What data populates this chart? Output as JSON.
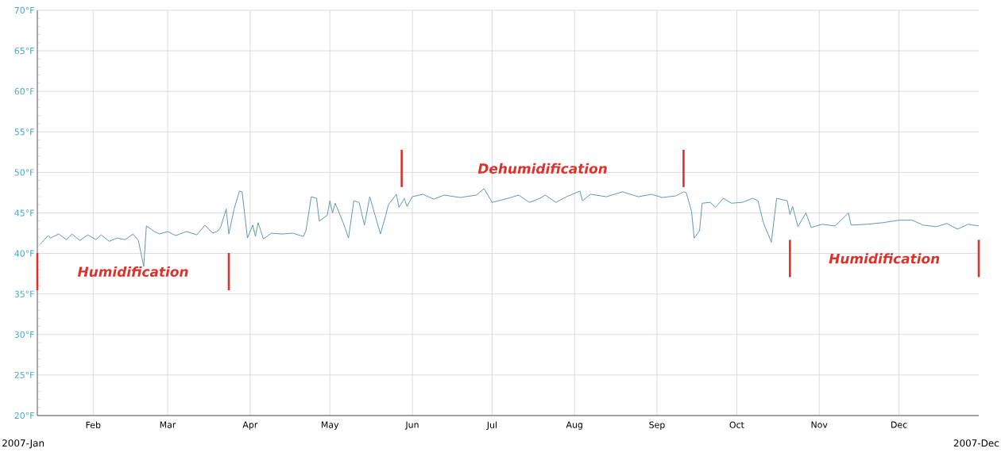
{
  "chart_data": {
    "type": "line",
    "x": [
      "2007-01-12",
      "2007-01-15",
      "2007-01-16",
      "2007-01-19",
      "2007-01-22",
      "2007-01-24",
      "2007-01-27",
      "2007-01-30",
      "2007-02-02",
      "2007-02-04",
      "2007-02-07",
      "2007-02-10",
      "2007-02-13",
      "2007-02-16",
      "2007-02-18",
      "2007-02-20",
      "2007-02-21",
      "2007-02-24",
      "2007-02-26",
      "2007-03-01",
      "2007-03-04",
      "2007-03-08",
      "2007-03-12",
      "2007-03-15",
      "2007-03-18",
      "2007-03-20",
      "2007-03-21",
      "2007-03-23",
      "2007-03-24",
      "2007-03-26",
      "2007-03-28",
      "2007-03-29",
      "2007-03-31",
      "2007-04-02",
      "2007-04-03",
      "2007-04-04",
      "2007-04-06",
      "2007-04-09",
      "2007-04-13",
      "2007-04-17",
      "2007-04-21",
      "2007-04-22",
      "2007-04-24",
      "2007-04-26",
      "2007-04-27",
      "2007-04-30",
      "2007-05-01",
      "2007-05-02",
      "2007-05-03",
      "2007-05-06",
      "2007-05-08",
      "2007-05-10",
      "2007-05-12",
      "2007-05-14",
      "2007-05-16",
      "2007-05-20",
      "2007-05-22",
      "2007-05-23",
      "2007-05-26",
      "2007-05-27",
      "2007-05-29",
      "2007-05-30",
      "2007-06-01",
      "2007-06-05",
      "2007-06-09",
      "2007-06-13",
      "2007-06-19",
      "2007-06-25",
      "2007-06-28",
      "2007-07-01",
      "2007-07-07",
      "2007-07-11",
      "2007-07-15",
      "2007-07-19",
      "2007-07-21",
      "2007-07-25",
      "2007-07-29",
      "2007-08-03",
      "2007-08-04",
      "2007-08-07",
      "2007-08-13",
      "2007-08-19",
      "2007-08-25",
      "2007-08-30",
      "2007-09-03",
      "2007-09-08",
      "2007-09-11",
      "2007-09-12",
      "2007-09-14",
      "2007-09-15",
      "2007-09-17",
      "2007-09-18",
      "2007-09-21",
      "2007-09-23",
      "2007-09-26",
      "2007-09-29",
      "2007-10-03",
      "2007-10-07",
      "2007-10-09",
      "2007-10-11",
      "2007-10-14",
      "2007-10-16",
      "2007-10-20",
      "2007-10-21",
      "2007-10-22",
      "2007-10-24",
      "2007-10-27",
      "2007-10-29",
      "2007-11-02",
      "2007-11-07",
      "2007-11-12",
      "2007-11-13",
      "2007-11-19",
      "2007-11-25",
      "2007-12-01",
      "2007-12-06",
      "2007-12-10",
      "2007-12-15",
      "2007-12-19",
      "2007-12-23",
      "2007-12-27",
      "2007-12-31"
    ],
    "series": [
      {
        "color": "#5f9ba6",
        "values": [
          41.1,
          42.2,
          41.9,
          42.4,
          41.7,
          42.4,
          41.6,
          42.3,
          41.7,
          42.3,
          41.5,
          41.9,
          41.7,
          42.4,
          41.6,
          38.4,
          43.4,
          42.7,
          42.4,
          42.7,
          42.2,
          42.7,
          42.3,
          43.5,
          42.5,
          42.8,
          43.3,
          45.5,
          42.4,
          45.5,
          47.7,
          47.6,
          41.9,
          43.5,
          42.1,
          43.8,
          41.8,
          42.5,
          42.4,
          42.5,
          42.1,
          42.8,
          47.0,
          46.8,
          44.0,
          44.7,
          46.5,
          45.0,
          46.2,
          43.8,
          41.9,
          46.5,
          46.3,
          43.5,
          47.0,
          42.4,
          44.7,
          46.0,
          47.3,
          45.7,
          46.8,
          45.8,
          47.0,
          47.3,
          46.7,
          47.2,
          46.9,
          47.2,
          48.0,
          46.3,
          46.8,
          47.2,
          46.3,
          46.8,
          47.2,
          46.3,
          47.0,
          47.7,
          46.5,
          47.3,
          47.0,
          47.6,
          47.0,
          47.3,
          46.9,
          47.1,
          47.6,
          47.5,
          45.2,
          41.9,
          42.8,
          46.2,
          46.3,
          45.7,
          46.8,
          46.2,
          46.3,
          46.8,
          46.5,
          43.8,
          41.4,
          46.8,
          46.5,
          44.8,
          45.8,
          43.3,
          45.0,
          43.2,
          43.6,
          43.4,
          45.0,
          43.5,
          43.6,
          43.8,
          44.1,
          44.1,
          43.5,
          43.3,
          43.7,
          43.0,
          43.6,
          43.4
        ]
      }
    ],
    "xlim": [
      "2007-01-11",
      "2007-12-31"
    ],
    "xticks": [
      {
        "value": "2007-02-01",
        "label": "Feb"
      },
      {
        "value": "2007-03-01",
        "label": "Mar"
      },
      {
        "value": "2007-04-01",
        "label": "Apr"
      },
      {
        "value": "2007-05-01",
        "label": "May"
      },
      {
        "value": "2007-06-01",
        "label": "Jun"
      },
      {
        "value": "2007-07-01",
        "label": "Jul"
      },
      {
        "value": "2007-08-01",
        "label": "Aug"
      },
      {
        "value": "2007-09-01",
        "label": "Sep"
      },
      {
        "value": "2007-10-01",
        "label": "Oct"
      },
      {
        "value": "2007-11-01",
        "label": "Nov"
      },
      {
        "value": "2007-12-01",
        "label": "Dec"
      }
    ],
    "ylim": [
      20,
      70
    ],
    "yticks": [
      {
        "value": 20,
        "label": "20°F"
      },
      {
        "value": 25,
        "label": "25°F"
      },
      {
        "value": 30,
        "label": "30°F"
      },
      {
        "value": 35,
        "label": "35°F"
      },
      {
        "value": 40,
        "label": "40°F"
      },
      {
        "value": 45,
        "label": "45°F"
      },
      {
        "value": 50,
        "label": "50°F"
      },
      {
        "value": 55,
        "label": "55°F"
      },
      {
        "value": 60,
        "label": "60°F"
      },
      {
        "value": 65,
        "label": "65°F"
      },
      {
        "value": 70,
        "label": "70°F"
      }
    ],
    "grid": true,
    "ref_lines": [
      {
        "axis": "x",
        "value": "2007-01-11",
        "color": "#e0302a"
      },
      {
        "axis": "x",
        "value": "2007-03-24",
        "color": "#e0302a"
      },
      {
        "axis": "x",
        "value": "2007-05-28",
        "color": "#e0302a"
      },
      {
        "axis": "x",
        "value": "2007-09-11",
        "color": "#e0302a"
      },
      {
        "axis": "x",
        "value": "2007-10-21",
        "color": "#e0302a"
      },
      {
        "axis": "x",
        "value": "2007-12-31",
        "color": "#e0302a"
      }
    ],
    "annotations": [
      "Humidification",
      "Dehumidification",
      "Humidification",
      "2007-Jan",
      "2007-Dec"
    ]
  }
}
